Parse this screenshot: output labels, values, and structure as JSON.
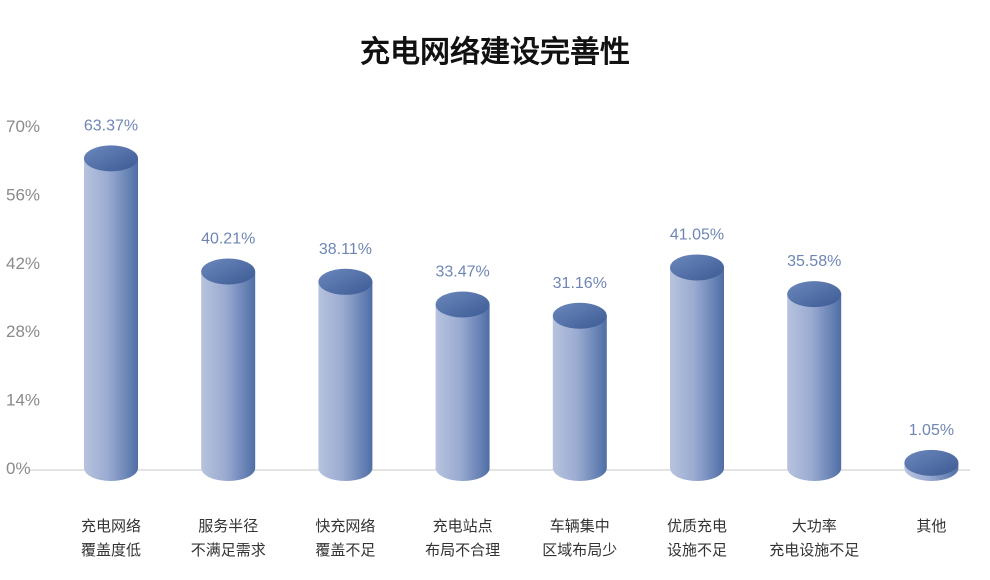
{
  "chart_data": {
    "type": "bar",
    "title": "充电网络建设完善性",
    "xlabel": "",
    "ylabel": "",
    "ylim": [
      0,
      70
    ],
    "yticks": [
      "0%",
      "14%",
      "28%",
      "42%",
      "56%",
      "70%"
    ],
    "categories": [
      [
        "充电网络",
        "覆盖度低"
      ],
      [
        "服务半径",
        "不满足需求"
      ],
      [
        "快充网络",
        "覆盖不足"
      ],
      [
        "充电站点",
        "布局不合理"
      ],
      [
        "车辆集中",
        "区域布局少"
      ],
      [
        "优质充电",
        "设施不足"
      ],
      [
        "大功率",
        "充电设施不足"
      ],
      [
        "其他"
      ]
    ],
    "values": [
      63.37,
      40.21,
      38.11,
      33.47,
      31.16,
      41.05,
      35.58,
      1.05
    ],
    "value_labels": [
      "63.37%",
      "40.21%",
      "38.11%",
      "33.47%",
      "31.16%",
      "41.05%",
      "35.58%",
      "1.05%"
    ],
    "grid": false,
    "colors": {
      "bar_light": "#a9b7d6",
      "bar_mid": "#8ea0c9",
      "bar_dark": "#4f6ea6",
      "top_light": "#5a78b0",
      "top_dark": "#3c5a94",
      "axis": "#c8c8c8",
      "value_label": "#6f86b4"
    }
  }
}
